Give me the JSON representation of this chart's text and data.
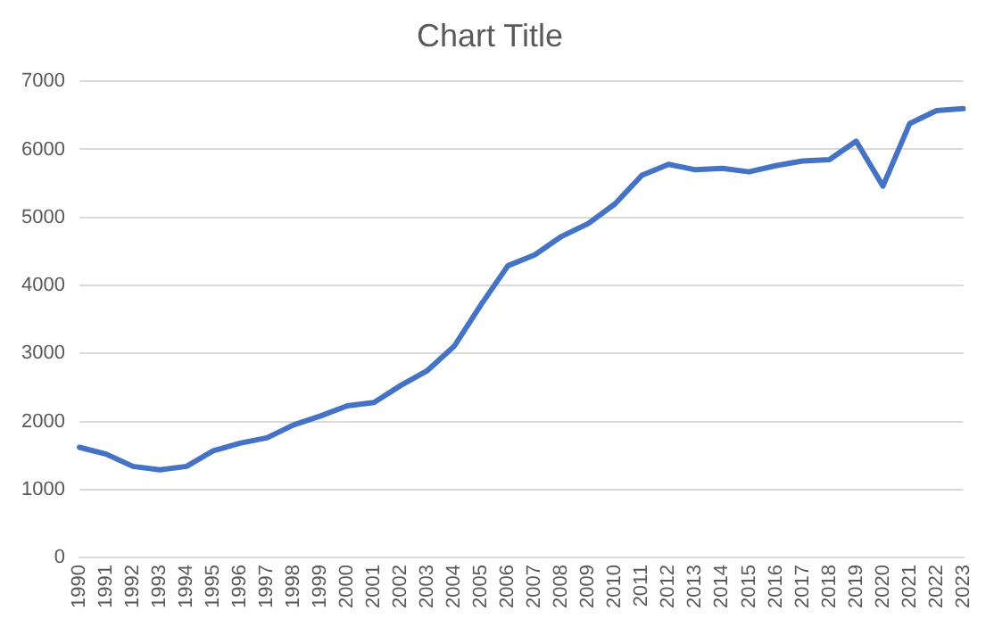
{
  "chart_data": {
    "type": "line",
    "title": "Chart Title",
    "categories": [
      "1990",
      "1991",
      "1992",
      "1993",
      "1994",
      "1995",
      "1996",
      "1997",
      "1998",
      "1999",
      "2000",
      "2001",
      "2002",
      "2003",
      "2004",
      "2005",
      "2006",
      "2007",
      "2008",
      "2009",
      "2010",
      "2011",
      "2012",
      "2013",
      "2014",
      "2015",
      "2016",
      "2017",
      "2018",
      "2019",
      "2020",
      "2021",
      "2022",
      "2023"
    ],
    "series": [
      {
        "color": "#4472c4",
        "values": [
          1620,
          1520,
          1340,
          1290,
          1340,
          1570,
          1680,
          1760,
          1950,
          2080,
          2230,
          2280,
          2530,
          2750,
          3110,
          3720,
          4290,
          4450,
          4720,
          4910,
          5200,
          5620,
          5780,
          5700,
          5720,
          5670,
          5760,
          5830,
          5850,
          6120,
          5460,
          6380,
          6570,
          6600
        ]
      }
    ],
    "ylim": [
      0,
      7000
    ],
    "yticks": [
      0,
      1000,
      2000,
      3000,
      4000,
      5000,
      6000,
      7000
    ],
    "grid": "y",
    "legend": false,
    "marker": "none",
    "line_style": "solid"
  }
}
